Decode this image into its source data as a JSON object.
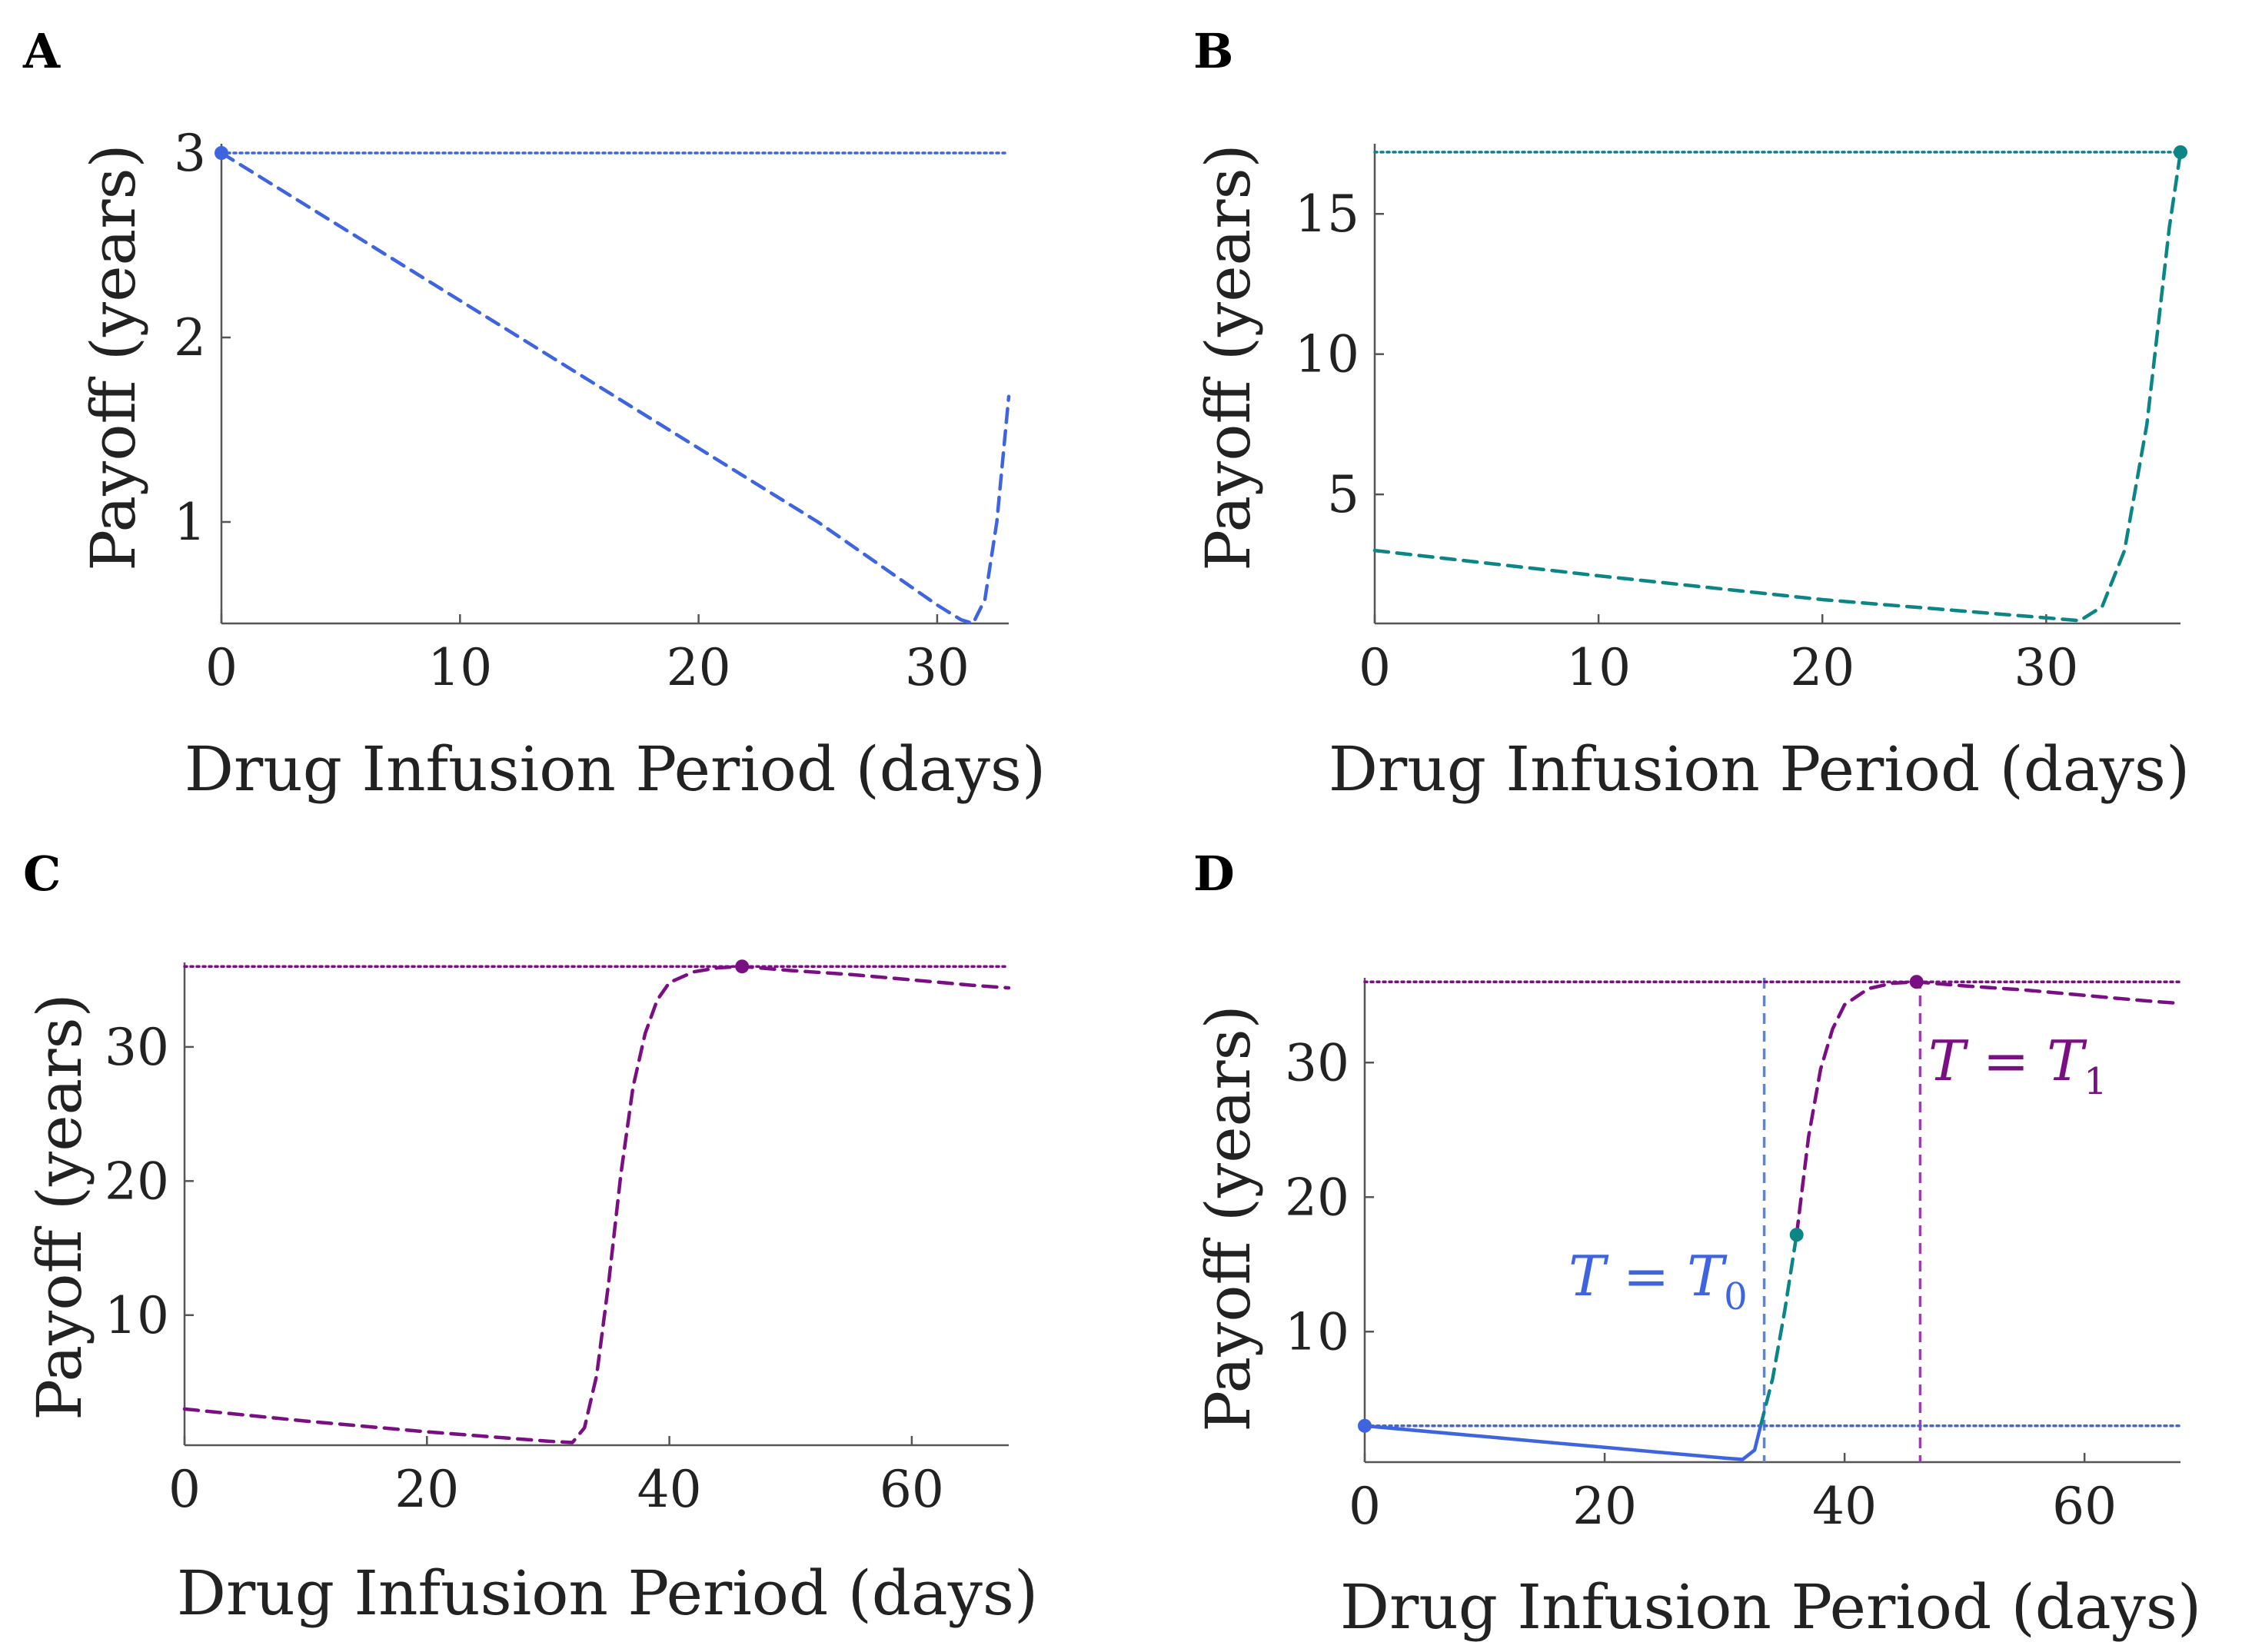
{
  "colors": {
    "blue": "#3f64e0",
    "teal": "#0b8585",
    "purple": "#7a0f84",
    "vline_blue": "#5b84db",
    "vline_purple": "#9b3fb0"
  },
  "chart_data": [
    {
      "panel": "A",
      "type": "line",
      "xlabel": "Drug Infusion Period (days)",
      "ylabel": "Payoff (years)",
      "xlim": [
        0,
        33
      ],
      "ylim": [
        0.45,
        3.05
      ],
      "xticks": [
        0,
        10,
        20,
        30
      ],
      "yticks": [
        1,
        2,
        3
      ],
      "color": "blue",
      "series": [
        {
          "name": "payoff",
          "style": "dashed",
          "x": [
            0,
            5,
            10,
            15,
            20,
            25,
            30,
            31,
            31.5,
            32,
            32.5,
            33
          ],
          "y": [
            3.0,
            2.6,
            2.2,
            1.8,
            1.4,
            1.0,
            0.55,
            0.47,
            0.45,
            0.58,
            1.0,
            1.68
          ]
        },
        {
          "name": "optimum",
          "style": "dotted",
          "x": [
            0,
            33
          ],
          "y": [
            3.0,
            3.0
          ]
        }
      ],
      "markers": [
        {
          "x": 0,
          "y": 3.0,
          "color": "blue"
        }
      ]
    },
    {
      "panel": "B",
      "type": "line",
      "xlabel": "Drug Infusion Period (days)",
      "ylabel": "Payoff (years)",
      "xlim": [
        0,
        36
      ],
      "ylim": [
        0.4,
        17.5
      ],
      "xticks": [
        0,
        10,
        20,
        30
      ],
      "yticks": [
        5,
        10,
        15
      ],
      "color": "teal",
      "series": [
        {
          "name": "payoff",
          "style": "dashed",
          "x": [
            0,
            10,
            20,
            30,
            31.5,
            32.5,
            33.5,
            34.5,
            35,
            35.5,
            36
          ],
          "y": [
            3.0,
            2.1,
            1.25,
            0.6,
            0.5,
            1.0,
            3.0,
            7.5,
            11.0,
            14.5,
            17.2
          ]
        },
        {
          "name": "optimum",
          "style": "dotted",
          "x": [
            0,
            36
          ],
          "y": [
            17.2,
            17.2
          ]
        }
      ],
      "markers": [
        {
          "x": 36,
          "y": 17.2,
          "color": "teal"
        }
      ]
    },
    {
      "panel": "C",
      "type": "line",
      "xlabel": "Drug Infusion Period (days)",
      "ylabel": "Payoff (years)",
      "xlim": [
        0,
        68
      ],
      "ylim": [
        0.3,
        36.3
      ],
      "xticks": [
        0,
        20,
        40,
        60
      ],
      "yticks": [
        10,
        20,
        30
      ],
      "color": "purple",
      "series": [
        {
          "name": "payoff",
          "style": "dashed",
          "x": [
            0,
            10,
            20,
            30,
            32,
            33,
            34,
            35,
            36,
            37,
            38,
            39,
            40,
            42,
            44,
            46,
            50,
            55,
            60,
            65,
            68
          ],
          "y": [
            3.0,
            2.1,
            1.3,
            0.6,
            0.5,
            1.6,
            5.5,
            12.5,
            20.5,
            27.0,
            31.0,
            33.5,
            34.8,
            35.6,
            35.9,
            36.0,
            35.7,
            35.4,
            35.0,
            34.6,
            34.4
          ]
        },
        {
          "name": "optimum",
          "style": "dotted",
          "x": [
            0,
            68
          ],
          "y": [
            36.0,
            36.0
          ]
        }
      ],
      "markers": [
        {
          "x": 46,
          "y": 36.0,
          "color": "purple"
        }
      ]
    },
    {
      "panel": "D",
      "type": "line",
      "xlabel": "Drug Infusion Period (days)",
      "ylabel": "Payoff (years)",
      "xlim": [
        0,
        68
      ],
      "ylim": [
        0.3,
        36.3
      ],
      "xticks": [
        0,
        20,
        40,
        60
      ],
      "yticks": [
        10,
        20,
        30
      ],
      "series": [
        {
          "name": "blue-solid",
          "color": "blue",
          "style": "solid",
          "x": [
            0,
            10,
            20,
            30,
            31.5,
            32.5,
            33
          ],
          "y": [
            3.0,
            2.2,
            1.4,
            0.6,
            0.5,
            1.2,
            3.0
          ]
        },
        {
          "name": "teal-dashed",
          "color": "teal",
          "style": "dashed",
          "x": [
            33,
            34,
            35,
            36
          ],
          "y": [
            3.0,
            6.5,
            11.5,
            17.2
          ]
        },
        {
          "name": "purple-dashed",
          "color": "purple",
          "style": "dashed",
          "x": [
            36,
            37,
            38,
            39,
            40,
            42,
            44,
            46,
            50,
            55,
            60,
            65,
            68
          ],
          "y": [
            17.2,
            24.5,
            29.5,
            32.5,
            34.3,
            35.5,
            35.9,
            36.0,
            35.7,
            35.4,
            35.0,
            34.6,
            34.4
          ]
        },
        {
          "name": "blue-dotted",
          "color": "blue",
          "style": "dotted",
          "x": [
            0,
            68
          ],
          "y": [
            3.0,
            3.0
          ]
        },
        {
          "name": "purple-dotted",
          "color": "purple",
          "style": "dotted",
          "x": [
            0,
            68
          ],
          "y": [
            36.0,
            36.0
          ]
        }
      ],
      "vlines": [
        {
          "x": 33.3,
          "color": "vline_blue"
        },
        {
          "x": 46.3,
          "color": "vline_purple"
        }
      ],
      "markers": [
        {
          "x": 0,
          "y": 3.0,
          "color": "blue"
        },
        {
          "x": 36,
          "y": 17.2,
          "color": "teal"
        },
        {
          "x": 46,
          "y": 36.0,
          "color": "purple"
        }
      ],
      "annotations": [
        {
          "text": "T = T",
          "subscript": "0",
          "color": "blue"
        },
        {
          "text": "T = T",
          "subscript": "1",
          "color": "purple"
        }
      ]
    }
  ]
}
